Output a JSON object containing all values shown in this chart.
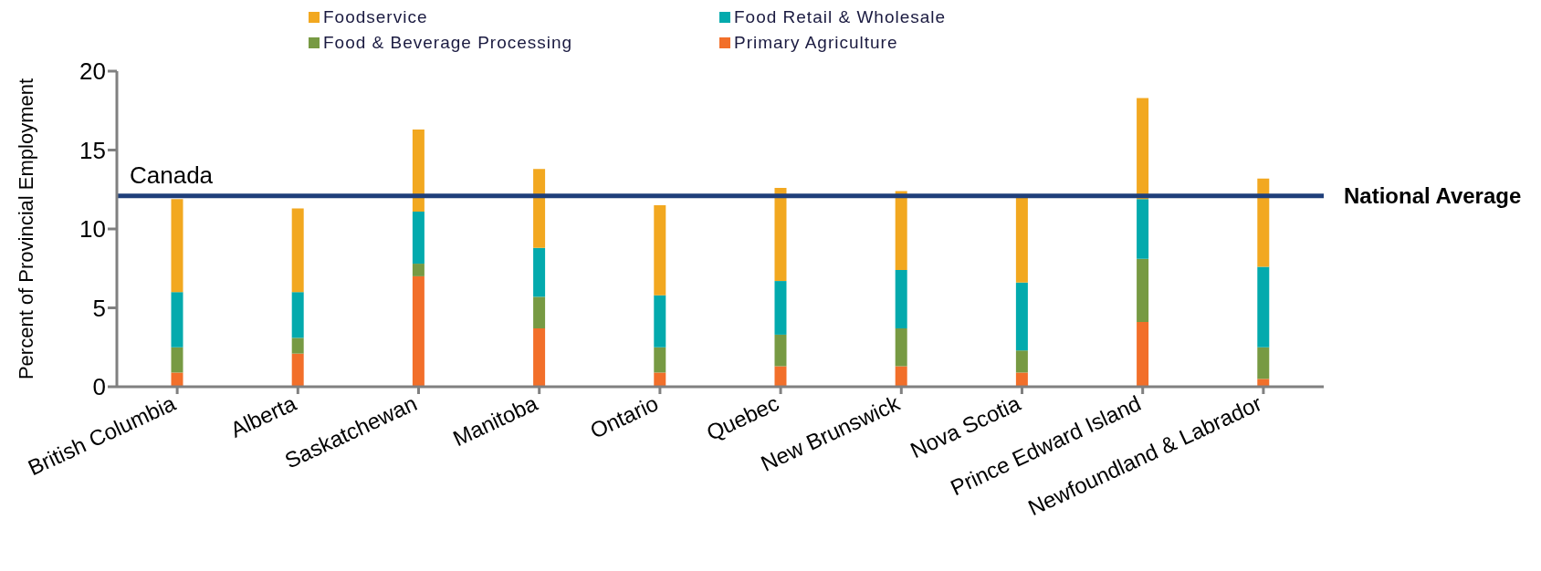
{
  "chart_data": {
    "type": "bar",
    "stacked": true,
    "ylabel": "Percent of Provincial Employment",
    "categories": [
      "British Columbia",
      "Alberta",
      "Saskatchewan",
      "Manitoba",
      "Ontario",
      "Quebec",
      "New Brunswick",
      "Nova Scotia",
      "Prince Edward Island",
      "Newfoundland  & Labrador"
    ],
    "series": [
      {
        "name": "Primary Agriculture",
        "color": "#f26f2a",
        "values": [
          0.9,
          2.1,
          7.0,
          3.7,
          0.9,
          1.3,
          1.3,
          0.9,
          4.1,
          0.5
        ]
      },
      {
        "name": "Food & Beverage Processing",
        "color": "#779a43",
        "values": [
          1.6,
          1.0,
          0.8,
          2.0,
          1.6,
          2.0,
          2.4,
          1.4,
          4.0,
          2.0
        ]
      },
      {
        "name": "Food Retail & Wholesale",
        "color": "#03aaad",
        "values": [
          3.5,
          2.9,
          3.3,
          3.1,
          3.3,
          3.4,
          3.7,
          4.3,
          3.8,
          5.1
        ]
      },
      {
        "name": "Foodservice",
        "color": "#f2a820",
        "values": [
          5.9,
          5.3,
          5.2,
          5.0,
          5.7,
          5.9,
          5.0,
          5.5,
          6.4,
          5.6
        ]
      }
    ],
    "ylim": [
      0,
      20
    ],
    "yticks": [
      0,
      5,
      10,
      15,
      20
    ],
    "grid": false,
    "legend": "top",
    "ref_lines": [
      {
        "axis": "y",
        "value": 12.1,
        "label": "Canada",
        "color": "#1f3f7a"
      }
    ],
    "annotations": [
      "National Average"
    ]
  }
}
